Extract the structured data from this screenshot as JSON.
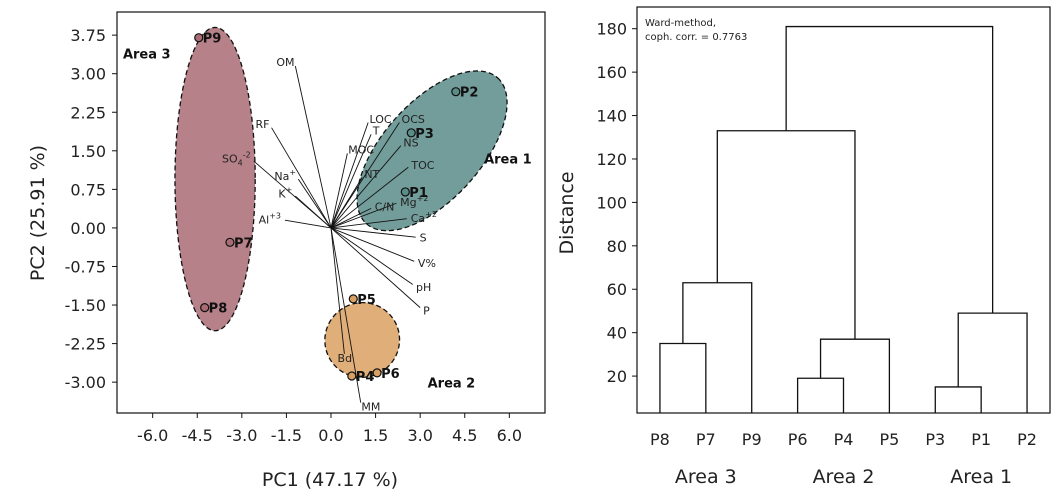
{
  "chart_data": [
    {
      "type": "scatter",
      "subtype": "pca-biplot",
      "xlabel": "PC1 (47.17 %)",
      "ylabel": "PC2 (25.91 %)",
      "xlim": [
        -7.2,
        7.2
      ],
      "ylim": [
        -3.6,
        4.2
      ],
      "xticks": [
        "-6.0",
        "-4.5",
        "-3.0",
        "-1.5",
        "0.0",
        "1.5",
        "3.0",
        "4.5",
        "6.0"
      ],
      "xtick_values": [
        -6.0,
        -4.5,
        -3.0,
        -1.5,
        0.0,
        1.5,
        3.0,
        4.5,
        6.0
      ],
      "yticks": [
        "3.75",
        "3.00",
        "2.25",
        "1.50",
        "0.75",
        "0.00",
        "-0.75",
        "-1.50",
        "-2.25",
        "-3.00"
      ],
      "ytick_values": [
        3.75,
        3.0,
        2.25,
        1.5,
        0.75,
        0.0,
        -0.75,
        -1.5,
        -2.25,
        -3.0
      ],
      "grid": false,
      "points": [
        {
          "label": "P1",
          "x": 2.5,
          "y": 0.7,
          "group": "Area 1"
        },
        {
          "label": "P2",
          "x": 4.2,
          "y": 2.65,
          "group": "Area 1"
        },
        {
          "label": "P3",
          "x": 2.7,
          "y": 1.85,
          "group": "Area 1"
        },
        {
          "label": "P4",
          "x": 0.7,
          "y": -2.88,
          "group": "Area 2"
        },
        {
          "label": "P5",
          "x": 0.75,
          "y": -1.38,
          "group": "Area 2"
        },
        {
          "label": "P6",
          "x": 1.55,
          "y": -2.82,
          "group": "Area 2"
        },
        {
          "label": "P7",
          "x": -3.4,
          "y": -0.28,
          "group": "Area 3"
        },
        {
          "label": "P8",
          "x": -4.25,
          "y": -1.55,
          "group": "Area 3"
        },
        {
          "label": "P9",
          "x": -4.45,
          "y": 3.7,
          "group": "Area 3"
        }
      ],
      "loadings": [
        {
          "label": "OM",
          "x": -1.2,
          "y": 3.15
        },
        {
          "label": "RF",
          "x": -2.0,
          "y": 1.95
        },
        {
          "label": "SO",
          "sup": "-2",
          "sub": "4",
          "x": -2.6,
          "y": 1.3
        },
        {
          "label": "Na",
          "sup": "+",
          "x": -1.1,
          "y": 0.95
        },
        {
          "label": "K",
          "sup": "+",
          "x": -1.2,
          "y": 0.62
        },
        {
          "label": "Al",
          "sup": "+3",
          "x": -1.55,
          "y": 0.15
        },
        {
          "label": "LOC",
          "x": 1.25,
          "y": 2.05
        },
        {
          "label": "OCS",
          "x": 2.3,
          "y": 2.05
        },
        {
          "label": "T",
          "x": 1.35,
          "y": 1.82
        },
        {
          "label": "NS",
          "x": 2.35,
          "y": 1.6
        },
        {
          "label": "MOC",
          "x": 0.55,
          "y": 1.45
        },
        {
          "label": "TOC",
          "x": 2.6,
          "y": 1.18
        },
        {
          "label": "NT",
          "x": 1.05,
          "y": 0.98
        },
        {
          "label": "Mg",
          "sup": "+2",
          "x": 2.2,
          "y": 0.48
        },
        {
          "label": "C/N",
          "x": 1.35,
          "y": 0.38
        },
        {
          "label": "Ca",
          "sup": "+2",
          "x": 2.55,
          "y": 0.18
        },
        {
          "label": "S",
          "x": 2.85,
          "y": -0.18
        },
        {
          "label": "V%",
          "x": 2.8,
          "y": -0.65
        },
        {
          "label": "pH",
          "x": 2.75,
          "y": -1.1
        },
        {
          "label": "P",
          "x": 3.0,
          "y": -1.55
        },
        {
          "label": "Bd",
          "x": 0.45,
          "y": -2.45
        },
        {
          "label": "MM",
          "x": 1.0,
          "y": -3.4
        }
      ],
      "areas": [
        {
          "name": "Area 1",
          "color": "#5a8c88",
          "cx": 3.4,
          "cy": 1.5,
          "rx": 3.3,
          "ry": 0.95,
          "angle_deg": 48,
          "label_x": 5.15,
          "label_y": 1.25
        },
        {
          "name": "Area 2",
          "color": "#daa061",
          "cx": 1.05,
          "cy": -2.18,
          "rx": 1.25,
          "ry": 0.73,
          "angle_deg": -46,
          "label_x": 3.25,
          "label_y": -3.1
        },
        {
          "name": "Area 3",
          "color": "#a96b74",
          "cx": -3.9,
          "cy": 0.95,
          "rx": 1.35,
          "ry": 2.95,
          "angle_deg": 0,
          "label_x": -7.0,
          "label_y": 3.3
        }
      ]
    },
    {
      "type": "dendrogram",
      "ylabel": "Distance",
      "xlabel": "",
      "ylim": [
        3,
        190
      ],
      "yticks": [
        "20",
        "40",
        "60",
        "80",
        "100",
        "120",
        "140",
        "160",
        "180"
      ],
      "ytick_values": [
        20,
        40,
        60,
        80,
        100,
        120,
        140,
        160,
        180
      ],
      "annotation": [
        "Ward-method,",
        "coph. corr. = 0.7763"
      ],
      "leaves": [
        "P8",
        "P7",
        "P9",
        "P6",
        "P4",
        "P5",
        "P3",
        "P1",
        "P2"
      ],
      "groups": [
        {
          "name": "Area 3",
          "leaves": [
            0,
            2
          ]
        },
        {
          "name": "Area 2",
          "leaves": [
            3,
            5
          ]
        },
        {
          "name": "Area 1",
          "leaves": [
            6,
            8
          ]
        }
      ],
      "merges": [
        {
          "a": "L0",
          "b": "L1",
          "height": 35
        },
        {
          "a": "N0",
          "b": "L2",
          "height": 63
        },
        {
          "a": "L3",
          "b": "L4",
          "height": 19
        },
        {
          "a": "N2",
          "b": "L5",
          "height": 37
        },
        {
          "a": "L6",
          "b": "L7",
          "height": 15
        },
        {
          "a": "N4",
          "b": "L8",
          "height": 49
        },
        {
          "a": "N1",
          "b": "N3",
          "height": 133
        },
        {
          "a": "N6",
          "b": "N5",
          "height": 181
        }
      ]
    }
  ]
}
